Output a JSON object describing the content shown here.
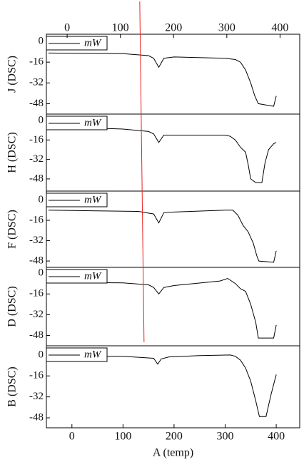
{
  "chart_data": [
    {
      "type": "line",
      "y_label": "J (DSC)",
      "xlim": [
        -50,
        446
      ],
      "ylim": [
        -56,
        5.5
      ],
      "yticks": [
        0,
        -16,
        -32,
        -48
      ],
      "x2lim": [
        -39,
        437
      ],
      "x2ticks": [
        0,
        100,
        200,
        300,
        400
      ],
      "legend": "upper left",
      "vline": {
        "x": 137,
        "color": "#e8231f"
      },
      "x": [
        -46,
        100,
        150,
        160,
        170,
        180,
        200,
        300,
        320,
        330,
        340,
        350,
        358,
        365,
        395,
        400
      ],
      "series": [
        {
          "name": "mW",
          "color": "#000000",
          "values": [
            -9,
            -9.5,
            -11,
            -13,
            -20,
            -13,
            -12,
            -13,
            -14,
            -16,
            -22,
            -32,
            -42,
            -48,
            -50,
            -42
          ]
        }
      ]
    },
    {
      "type": "line",
      "y_label": "H (DSC)",
      "xlim": [
        -50,
        446
      ],
      "ylim": [
        -58,
        5.3
      ],
      "yticks": [
        0,
        -16,
        -32,
        -48
      ],
      "legend": "upper left",
      "x": [
        -46,
        100,
        150,
        160,
        170,
        180,
        200,
        300,
        310,
        320,
        330,
        340,
        345,
        350,
        360,
        372,
        378,
        385,
        395,
        400
      ],
      "series": [
        {
          "name": "mW",
          "color": "#000000",
          "values": [
            -5,
            -7,
            -9,
            -11,
            -18,
            -12,
            -12,
            -12,
            -13,
            -16,
            -22,
            -26,
            -36,
            -48,
            -51,
            -51,
            -35,
            -24,
            -19,
            -18
          ]
        }
      ]
    },
    {
      "type": "line",
      "y_label": "F (DSC)",
      "xlim": [
        -50,
        446
      ],
      "ylim": [
        -53,
        7
      ],
      "yticks": [
        0,
        -16,
        -32,
        -48
      ],
      "legend": "upper left",
      "x": [
        -46,
        130,
        160,
        170,
        180,
        200,
        300,
        315,
        325,
        335,
        345,
        355,
        362,
        366,
        395,
        400
      ],
      "series": [
        {
          "name": "mW",
          "color": "#000000",
          "values": [
            -8,
            -9,
            -11,
            -18,
            -10,
            -9.5,
            -8,
            -8,
            -12,
            -20,
            -25,
            -34,
            -44,
            -48,
            -49,
            -40
          ]
        }
      ]
    },
    {
      "type": "line",
      "y_label": "D (DSC)",
      "xlim": [
        -50,
        446
      ],
      "ylim": [
        -56,
        4.5
      ],
      "yticks": [
        0,
        -16,
        -32,
        -48
      ],
      "legend": "upper left",
      "x": [
        -46,
        100,
        150,
        160,
        170,
        180,
        200,
        290,
        305,
        320,
        330,
        340,
        350,
        360,
        365,
        395,
        400
      ],
      "series": [
        {
          "name": "mW",
          "color": "#000000",
          "values": [
            -7,
            -7.5,
            -9,
            -11,
            -16,
            -11,
            -9.5,
            -6,
            -4,
            -8,
            -12,
            -14,
            -24,
            -38,
            -50,
            -50,
            -40
          ]
        }
      ]
    },
    {
      "type": "line",
      "y_label": "B (DSC)",
      "x_label": "A (temp)",
      "xlim": [
        -50,
        446
      ],
      "ylim": [
        -55.6,
        7
      ],
      "yticks": [
        0,
        -16,
        -32,
        -48
      ],
      "xticks": [
        0,
        100,
        200,
        300,
        400
      ],
      "legend": "upper left",
      "x": [
        -46,
        100,
        160,
        168,
        175,
        190,
        250,
        310,
        320,
        330,
        340,
        350,
        360,
        367,
        380,
        390,
        400
      ],
      "series": [
        {
          "name": "mW",
          "color": "#000000",
          "values": [
            -1,
            -1,
            -2.5,
            -7,
            -3,
            -1.5,
            -0.5,
            0,
            -1,
            -4,
            -10,
            -20,
            -35,
            -47,
            -47,
            -30,
            -15
          ]
        }
      ]
    }
  ]
}
